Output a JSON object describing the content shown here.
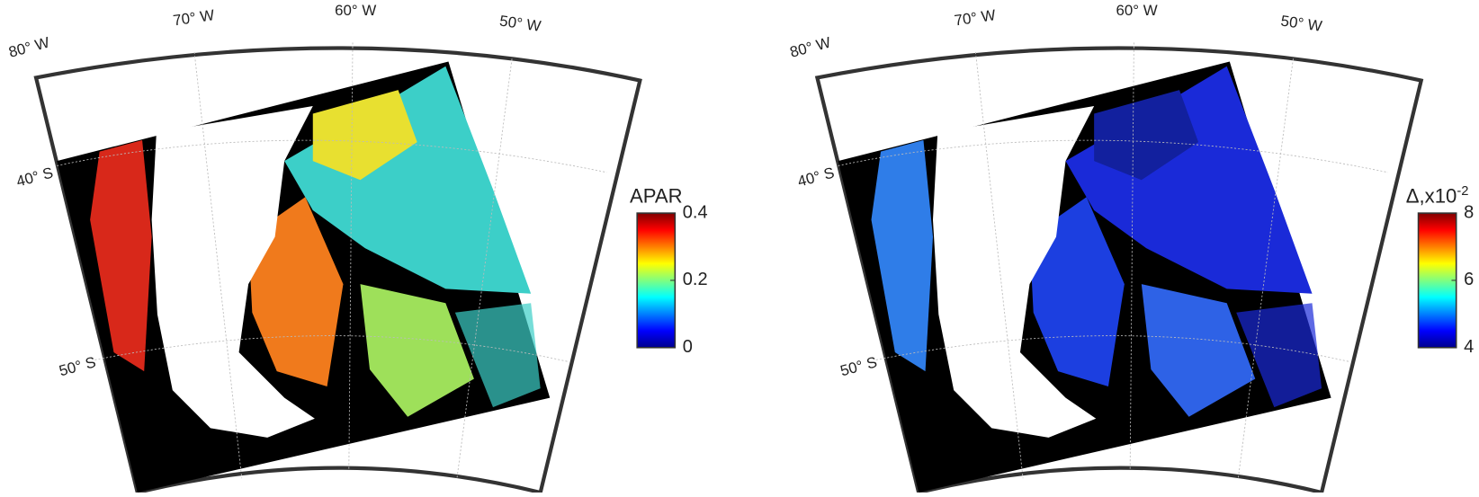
{
  "panels": [
    {
      "lon_labels": [
        "80° W",
        "70° W",
        "60° W",
        "50° W"
      ],
      "lat_labels": [
        "40° S",
        "50° S"
      ],
      "colorbar": {
        "title": "APAR",
        "lim": [
          0,
          0.4
        ],
        "ticks": [
          0,
          0.2,
          0.4
        ]
      }
    },
    {
      "lon_labels": [
        "80° W",
        "70° W",
        "60° W",
        "50° W"
      ],
      "lat_labels": [
        "40° S",
        "50° S"
      ],
      "colorbar": {
        "title": "Δ,x10",
        "title_exponent": "-2",
        "lim": [
          4,
          8
        ],
        "ticks": [
          4,
          6,
          8
        ]
      }
    }
  ]
}
